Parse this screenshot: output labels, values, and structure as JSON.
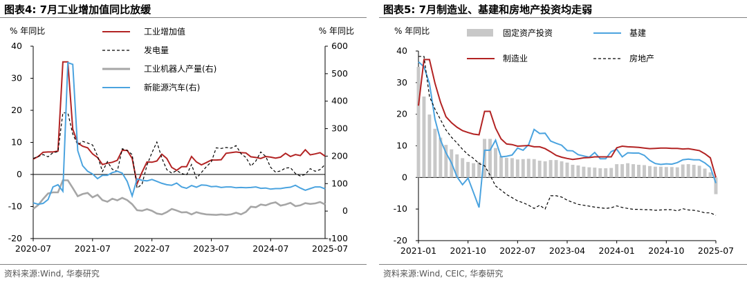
{
  "charts": [
    {
      "title": "图表4:  7月工业增加值同比放缓",
      "source": "资料来源:Wind, 华泰研究",
      "chart_data": {
        "type": "line",
        "y_left_unit": "% 年同比",
        "y_right_unit": "% 年同比",
        "ylim_left": [
          -20,
          40
        ],
        "ylim_right": [
          -100,
          600
        ],
        "yticks_left": [
          "40",
          "30",
          "20",
          "10",
          "0",
          "-10",
          "-20"
        ],
        "yticks_right": [
          "600",
          "500",
          "400",
          "300",
          "200",
          "100",
          "0",
          "-100"
        ],
        "x_tick_labels": [
          "2020-07",
          "2021-07",
          "2022-07",
          "2023-07",
          "2024-07",
          "2025-07"
        ],
        "x_tick_index": [
          0,
          12,
          24,
          36,
          48,
          60
        ],
        "grid": false,
        "legend": "top-left",
        "series": [
          {
            "name": "工业增加值",
            "axis": "left",
            "color": "#b22222",
            "style": "solid",
            "values": [
              4.8,
              5.6,
              6.9,
              7.0,
              7.0,
              7.3,
              35.1,
              35.1,
              14.1,
              9.8,
              8.8,
              8.3,
              6.4,
              5.3,
              3.1,
              3.5,
              3.8,
              4.4,
              7.5,
              7.5,
              5.0,
              -2.9,
              0.7,
              3.9,
              3.8,
              4.2,
              6.3,
              5.0,
              2.2,
              1.3,
              2.4,
              2.4,
              5.6,
              3.9,
              3.0,
              3.7,
              4.5,
              4.5,
              4.6,
              6.6,
              6.8,
              7.0,
              6.8,
              6.7,
              5.5,
              5.3,
              5.0,
              5.6,
              5.4,
              5.1,
              5.4,
              6.6,
              5.6,
              6.2,
              5.9,
              7.7,
              6.1,
              6.4,
              6.8,
              5.7
            ]
          },
          {
            "name": "发电量",
            "axis": "left",
            "color": "#000000",
            "style": "dashed",
            "values": [
              5.0,
              5.6,
              6.2,
              5.5,
              6.8,
              7.1,
              19.2,
              19.2,
              12.6,
              9.2,
              10.3,
              9.8,
              9.2,
              5.8,
              0.9,
              4.0,
              1.6,
              1.0,
              8.0,
              7.5,
              6.2,
              -4.3,
              -3.0,
              2.9,
              6.8,
              10.1,
              5.1,
              1.5,
              0.4,
              1.2,
              0.3,
              -0.2,
              3.1,
              -1.2,
              0.6,
              2.4,
              3.9,
              8.3,
              8.1,
              8.4,
              8.2,
              9.0,
              6.5,
              5.3,
              2.6,
              4.2,
              7.0,
              5.6,
              2.2,
              0.7,
              1.1,
              2.0,
              2.1,
              0.3,
              -0.5,
              0.0,
              1.8,
              1.0,
              1.5,
              3.1
            ]
          },
          {
            "name": "工业机器人产量(右)",
            "axis": "right",
            "color": "#a6a6a6",
            "style": "solid",
            "values": [
              8,
              22,
              44,
              64,
              68,
              68,
              112,
              112,
              84,
              54,
              62,
              66,
              50,
              59,
              40,
              34,
              45,
              39,
              48,
              40,
              25,
              3,
              1,
              7,
              1,
              -9,
              -12,
              -4,
              8,
              2,
              -5,
              -4,
              -12,
              -4,
              -9,
              -12,
              -13,
              -14,
              -12,
              -14,
              -12,
              -6,
              -12,
              -3,
              16,
              14,
              24,
              21,
              28,
              32,
              20,
              24,
              30,
              18,
              21,
              29,
              26,
              28,
              33,
              24
            ]
          },
          {
            "name": "新能源汽车(右)",
            "axis": "right",
            "color": "#4aa3df",
            "style": "solid",
            "values": [
              30,
              25,
              28,
              42,
              88,
              96,
              72,
              540,
              534,
              220,
              165,
              145,
              135,
              118,
              130,
              130,
              140,
              145,
              138,
              108,
              55,
              117,
              112,
              110,
              115,
              108,
              101,
              96,
              94,
              102,
              88,
              83,
              93,
              87,
              95,
              94,
              89,
              90,
              86,
              88,
              88,
              85,
              86,
              85,
              86,
              88,
              83,
              84,
              80,
              82,
              82,
              85,
              87,
              94,
              84,
              76,
              82,
              88,
              88,
              81
            ]
          }
        ]
      }
    },
    {
      "title": "图表5:  7月制造业、基建和房地产投资均走弱",
      "source": "资料来源:Wind, CEIC, 华泰研究",
      "chart_data": {
        "type": "bar",
        "y_left_unit": "% 年同比",
        "ylim_left": [
          -20,
          40
        ],
        "yticks_left": [
          "40",
          "30",
          "20",
          "10",
          "0",
          "-10",
          "-20"
        ],
        "x_tick_labels": [
          "2021-01",
          "2021-10",
          "2022-07",
          "2023-04",
          "2024-01",
          "2024-10",
          "2025-07"
        ],
        "x_tick_index": [
          0,
          9,
          18,
          27,
          36,
          45,
          54
        ],
        "grid": false,
        "legend": "top",
        "series": [
          {
            "name": "固定资产投资",
            "axis": "left",
            "color": "#c8c8c8",
            "style": "bar",
            "values": [
              35.0,
              25.6,
              19.9,
              15.4,
              12.6,
              10.3,
              8.9,
              7.3,
              6.1,
              4.9,
              4.5,
              4.9,
              12.2,
              12.2,
              9.3,
              6.8,
              6.2,
              6.1,
              5.7,
              5.8,
              5.9,
              5.8,
              5.3,
              5.1,
              5.5,
              5.5,
              5.1,
              4.7,
              4.0,
              3.8,
              3.4,
              3.2,
              3.1,
              2.9,
              2.9,
              3.0,
              4.2,
              4.2,
              4.5,
              4.2,
              4.0,
              3.9,
              3.6,
              3.4,
              3.4,
              3.3,
              3.3,
              3.2,
              4.1,
              4.2,
              4.0,
              3.7,
              2.8,
              1.6,
              -5.3
            ]
          },
          {
            "name": "基建",
            "axis": "left",
            "color": "#4aa3df",
            "style": "solid",
            "values": [
              36.6,
              35.0,
              29.7,
              18.4,
              11.8,
              7.8,
              4.6,
              0.2,
              -2.3,
              -0.2,
              -4.8,
              -9.5,
              8.6,
              8.6,
              11.8,
              6.5,
              6.7,
              7.1,
              9.3,
              8.6,
              10.4,
              15.2,
              13.9,
              14.0,
              11.5,
              10.8,
              10.2,
              8.5,
              8.4,
              7.2,
              6.8,
              6.4,
              7.9,
              5.9,
              5.9,
              8.2,
              8.9,
              6.5,
              7.8,
              7.7,
              7.7,
              7.0,
              5.4,
              4.4,
              4.1,
              4.3,
              4.2,
              4.7,
              5.6,
              5.8,
              5.6,
              5.6,
              4.6,
              3.2,
              -1.8
            ]
          },
          {
            "name": "制造业",
            "axis": "left",
            "color": "#b22222",
            "style": "solid",
            "values": [
              22.7,
              37.3,
              37.3,
              29.8,
              23.8,
              19.2,
              17.3,
              15.9,
              14.8,
              14.2,
              13.7,
              13.5,
              20.9,
              20.9,
              15.6,
              12.2,
              10.6,
              10.4,
              9.9,
              10.0,
              10.1,
              9.7,
              9.7,
              9.1,
              8.1,
              7.0,
              6.4,
              6.0,
              5.7,
              5.9,
              6.2,
              6.3,
              6.5,
              6.5,
              6.5,
              6.5,
              9.4,
              9.9,
              9.7,
              9.6,
              9.5,
              9.3,
              9.1,
              9.2,
              9.3,
              9.3,
              9.2,
              9.2,
              9.0,
              9.1,
              8.8,
              8.5,
              7.5,
              6.2,
              0.0
            ]
          },
          {
            "name": "房地产",
            "axis": "left",
            "color": "#000000",
            "style": "dashed",
            "values": [
              38.3,
              38.3,
              25.6,
              21.6,
              18.3,
              15.0,
              12.7,
              10.9,
              8.9,
              7.2,
              6.0,
              4.4,
              3.7,
              0.7,
              -2.7,
              -4.0,
              -5.4,
              -6.4,
              -7.4,
              -8.0,
              -8.8,
              -9.8,
              -8.8,
              -10.0,
              -5.8,
              -5.8,
              -6.2,
              -7.2,
              -7.9,
              -8.5,
              -8.8,
              -9.1,
              -9.4,
              -9.6,
              -9.8,
              -9.6,
              -9.0,
              -9.5,
              -9.8,
              -10.1,
              -10.1,
              -10.2,
              -10.2,
              -10.4,
              -10.3,
              -10.2,
              -10.2,
              -10.6,
              -9.9,
              -10.3,
              -10.4,
              -10.7,
              -11.2,
              -11.2,
              -12.0
            ]
          }
        ]
      }
    }
  ]
}
